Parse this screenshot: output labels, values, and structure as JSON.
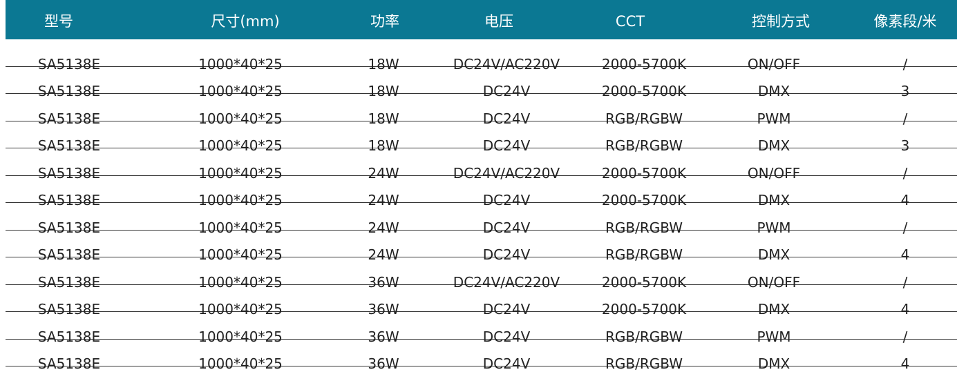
{
  "table": {
    "header": [
      "型号",
      "尺寸(mm)",
      "功率",
      "电压",
      "CCT",
      "控制方式",
      "像素段/米"
    ],
    "rows": [
      [
        "SA5138E",
        "1000*40*25",
        "18W",
        "DC24V/AC220V",
        "2000-5700K",
        "ON/OFF",
        "/"
      ],
      [
        "SA5138E",
        "1000*40*25",
        "18W",
        "DC24V",
        "2000-5700K",
        "DMX",
        "3"
      ],
      [
        "SA5138E",
        "1000*40*25",
        "18W",
        "DC24V",
        "RGB/RGBW",
        "PWM",
        "/"
      ],
      [
        "SA5138E",
        "1000*40*25",
        "18W",
        "DC24V",
        "RGB/RGBW",
        "DMX",
        "3"
      ],
      [
        "SA5138E",
        "1000*40*25",
        "24W",
        "DC24V/AC220V",
        "2000-5700K",
        "ON/OFF",
        "/"
      ],
      [
        "SA5138E",
        "1000*40*25",
        "24W",
        "DC24V",
        "2000-5700K",
        "DMX",
        "4"
      ],
      [
        "SA5138E",
        "1000*40*25",
        "24W",
        "DC24V",
        "RGB/RGBW",
        "PWM",
        "/"
      ],
      [
        "SA5138E",
        "1000*40*25",
        "24W",
        "DC24V",
        "RGB/RGBW",
        "DMX",
        "4"
      ],
      [
        "SA5138E",
        "1000*40*25",
        "36W",
        "DC24V/AC220V",
        "2000-5700K",
        "ON/OFF",
        "/"
      ],
      [
        "SA5138E",
        "1000*40*25",
        "36W",
        "DC24V",
        "2000-5700K",
        "DMX",
        "4"
      ],
      [
        "SA5138E",
        "1000*40*25",
        "36W",
        "DC24V",
        "RGB/RGBW",
        "PWM",
        "/"
      ],
      [
        "SA5138E",
        "1000*40*25",
        "36W",
        "DC24V",
        "RGB/RGBW",
        "DMX",
        "4"
      ]
    ]
  }
}
